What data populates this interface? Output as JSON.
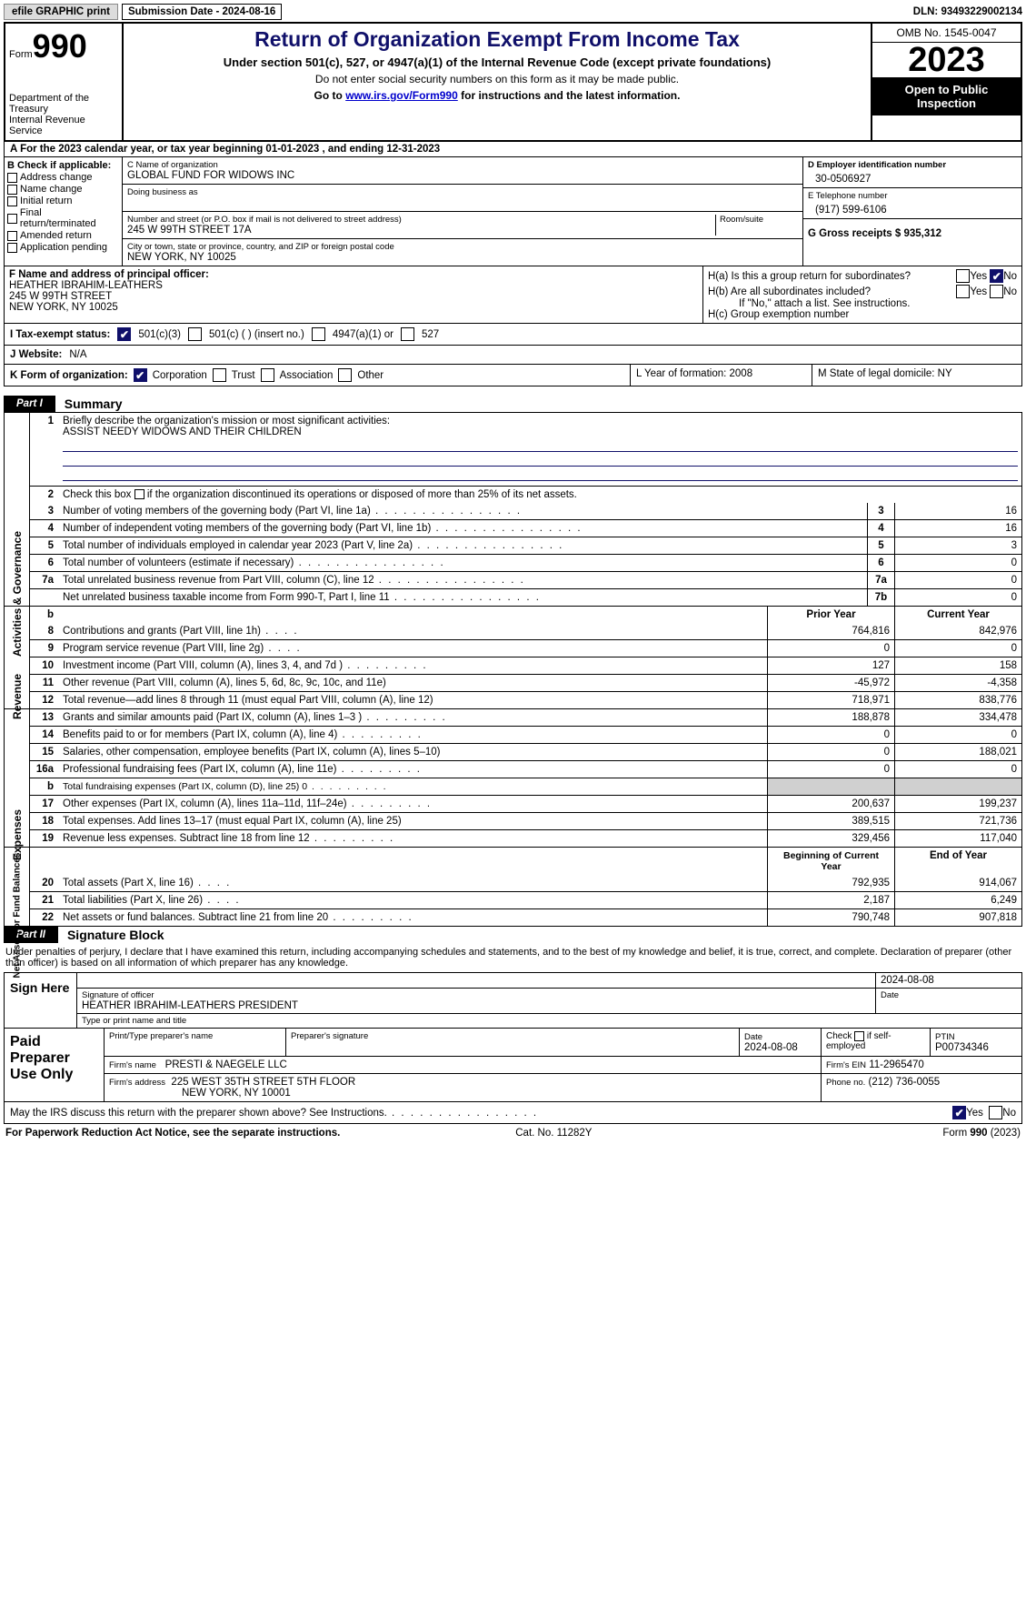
{
  "header_bar": {
    "efile": "efile GRAPHIC print",
    "submission": "Submission Date - 2024-08-16",
    "dln": "DLN: 93493229002134"
  },
  "top": {
    "form_word": "Form",
    "form_num": "990",
    "dept": "Department of the Treasury",
    "irs": "Internal Revenue Service",
    "title": "Return of Organization Exempt From Income Tax",
    "sub": "Under section 501(c), 527, or 4947(a)(1) of the Internal Revenue Code (except private foundations)",
    "nossn": "Do not enter social security numbers on this form as it may be made public.",
    "goto_pre": "Go to ",
    "goto_link": "www.irs.gov/Form990",
    "goto_post": " for instructions and the latest information.",
    "omb": "OMB No. 1545-0047",
    "year": "2023",
    "open": "Open to Public Inspection"
  },
  "row_a": "A  For the 2023 calendar year, or tax year beginning 01-01-2023    , and ending 12-31-2023",
  "col_b": {
    "hdr": "B Check if applicable:",
    "items": [
      "Address change",
      "Name change",
      "Initial return",
      "Final return/terminated",
      "Amended return",
      "Application pending"
    ]
  },
  "col_c": {
    "c_lbl": "C Name of organization",
    "c_val": "GLOBAL FUND FOR WIDOWS INC",
    "dba_lbl": "Doing business as",
    "addr_lbl": "Number and street (or P.O. box if mail is not delivered to street address)",
    "room_lbl": "Room/suite",
    "addr_val": "245 W 99TH STREET 17A",
    "city_lbl": "City or town, state or province, country, and ZIP or foreign postal code",
    "city_val": "NEW YORK, NY  10025"
  },
  "col_d": {
    "d_lbl": "D Employer identification number",
    "d_val": "30-0506927",
    "e_lbl": "E Telephone number",
    "e_val": "(917) 599-6106",
    "g_lbl": "G Gross receipts $ 935,312"
  },
  "fgh": {
    "f_lbl": "F  Name and address of principal officer:",
    "f_val": "HEATHER IBRAHIM-LEATHERS\n245 W 99TH STREET\nNEW YORK, NY  10025",
    "ha": "H(a)  Is this a group return for subordinates?",
    "hb": "H(b)  Are all subordinates included?",
    "hb_note": "If \"No,\" attach a list. See instructions.",
    "hc": "H(c)  Group exemption number",
    "yes": "Yes",
    "no": "No"
  },
  "status": {
    "i_lbl": "I   Tax-exempt status:",
    "i1": "501(c)(3)",
    "i2": "501(c) (  ) (insert no.)",
    "i3": "4947(a)(1) or",
    "i4": "527",
    "j_lbl": "J   Website:",
    "j_val": "N/A"
  },
  "klm": {
    "k_lbl": "K Form of organization:",
    "k_opts": [
      "Corporation",
      "Trust",
      "Association",
      "Other"
    ],
    "l": "L Year of formation: 2008",
    "m": "M State of legal domicile: NY"
  },
  "part1": {
    "tag": "Part I",
    "title": "Summary"
  },
  "s1": {
    "vlabel": "Activities & Governance",
    "l1": "Briefly describe the organization's mission or most significant activities:",
    "l1v": "ASSIST NEEDY WIDOWS AND THEIR CHILDREN",
    "l2": "Check this box      if the organization discontinued its operations or disposed of more than 25% of its net assets.",
    "rows": [
      {
        "n": "3",
        "t": "Number of voting members of the governing body (Part VI, line 1a)",
        "k": "3",
        "v": "16"
      },
      {
        "n": "4",
        "t": "Number of independent voting members of the governing body (Part VI, line 1b)",
        "k": "4",
        "v": "16"
      },
      {
        "n": "5",
        "t": "Total number of individuals employed in calendar year 2023 (Part V, line 2a)",
        "k": "5",
        "v": "3"
      },
      {
        "n": "6",
        "t": "Total number of volunteers (estimate if necessary)",
        "k": "6",
        "v": "0"
      },
      {
        "n": "7a",
        "t": "Total unrelated business revenue from Part VIII, column (C), line 12",
        "k": "7a",
        "v": "0"
      },
      {
        "n": "",
        "t": "Net unrelated business taxable income from Form 990-T, Part I, line 11",
        "k": "7b",
        "v": "0"
      }
    ]
  },
  "s2": {
    "vlabel": "Revenue",
    "hdr_b": "b",
    "hdr_prior": "Prior Year",
    "hdr_curr": "Current Year",
    "rows": [
      {
        "n": "8",
        "t": "Contributions and grants (Part VIII, line 1h)",
        "p": "764,816",
        "c": "842,976"
      },
      {
        "n": "9",
        "t": "Program service revenue (Part VIII, line 2g)",
        "p": "0",
        "c": "0"
      },
      {
        "n": "10",
        "t": "Investment income (Part VIII, column (A), lines 3, 4, and 7d )",
        "p": "127",
        "c": "158"
      },
      {
        "n": "11",
        "t": "Other revenue (Part VIII, column (A), lines 5, 6d, 8c, 9c, 10c, and 11e)",
        "p": "-45,972",
        "c": "-4,358"
      },
      {
        "n": "12",
        "t": "Total revenue—add lines 8 through 11 (must equal Part VIII, column (A), line 12)",
        "p": "718,971",
        "c": "838,776"
      }
    ]
  },
  "s3": {
    "vlabel": "Expenses",
    "rows": [
      {
        "n": "13",
        "t": "Grants and similar amounts paid (Part IX, column (A), lines 1–3 )",
        "p": "188,878",
        "c": "334,478"
      },
      {
        "n": "14",
        "t": "Benefits paid to or for members (Part IX, column (A), line 4)",
        "p": "0",
        "c": "0"
      },
      {
        "n": "15",
        "t": "Salaries, other compensation, employee benefits (Part IX, column (A), lines 5–10)",
        "p": "0",
        "c": "188,021"
      },
      {
        "n": "16a",
        "t": "Professional fundraising fees (Part IX, column (A), line 11e)",
        "p": "0",
        "c": "0"
      },
      {
        "n": "b",
        "t": "Total fundraising expenses (Part IX, column (D), line 25) 0",
        "p": "",
        "c": "",
        "shade": true,
        "small": true
      },
      {
        "n": "17",
        "t": "Other expenses (Part IX, column (A), lines 11a–11d, 11f–24e)",
        "p": "200,637",
        "c": "199,237"
      },
      {
        "n": "18",
        "t": "Total expenses. Add lines 13–17 (must equal Part IX, column (A), line 25)",
        "p": "389,515",
        "c": "721,736"
      },
      {
        "n": "19",
        "t": "Revenue less expenses. Subtract line 18 from line 12",
        "p": "329,456",
        "c": "117,040"
      }
    ]
  },
  "s4": {
    "vlabel": "Net Assets or Fund Balances",
    "hdr_b": "Beginning of Current Year",
    "hdr_e": "End of Year",
    "rows": [
      {
        "n": "20",
        "t": "Total assets (Part X, line 16)",
        "p": "792,935",
        "c": "914,067"
      },
      {
        "n": "21",
        "t": "Total liabilities (Part X, line 26)",
        "p": "2,187",
        "c": "6,249"
      },
      {
        "n": "22",
        "t": "Net assets or fund balances. Subtract line 21 from line 20",
        "p": "790,748",
        "c": "907,818"
      }
    ]
  },
  "part2": {
    "tag": "Part II",
    "title": "Signature Block"
  },
  "sig_note": "Under penalties of perjury, I declare that I have examined this return, including accompanying schedules and statements, and to the best of my knowledge and belief, it is true, correct, and complete. Declaration of preparer (other than officer) is based on all information of which preparer has any knowledge.",
  "sign": {
    "left": "Sign Here",
    "date": "2024-08-08",
    "sig_lbl": "Signature of officer",
    "name": "HEATHER IBRAHIM-LEATHERS  PRESIDENT",
    "type_lbl": "Type or print name and title",
    "date_lbl": "Date"
  },
  "prep": {
    "left": "Paid Preparer Use Only",
    "h1": "Print/Type preparer's name",
    "h2": "Preparer's signature",
    "h3": "Date",
    "h3v": "2024-08-08",
    "h4": "Check        if self-employed",
    "h5": "PTIN",
    "h5v": "P00734346",
    "firm_lbl": "Firm's name",
    "firm": "PRESTI & NAEGELE LLC",
    "ein_lbl": "Firm's EIN",
    "ein": "11-2965470",
    "addr_lbl": "Firm's address",
    "addr1": "225 WEST 35TH STREET 5TH FLOOR",
    "addr2": "NEW YORK, NY  10001",
    "phone_lbl": "Phone no.",
    "phone": "(212) 736-0055"
  },
  "may_irs": "May the IRS discuss this return with the preparer shown above? See Instructions.",
  "footer": {
    "l": "For Paperwork Reduction Act Notice, see the separate instructions.",
    "m": "Cat. No. 11282Y",
    "r": "Form 990 (2023)"
  },
  "colors": {
    "navy": "#10106a"
  }
}
